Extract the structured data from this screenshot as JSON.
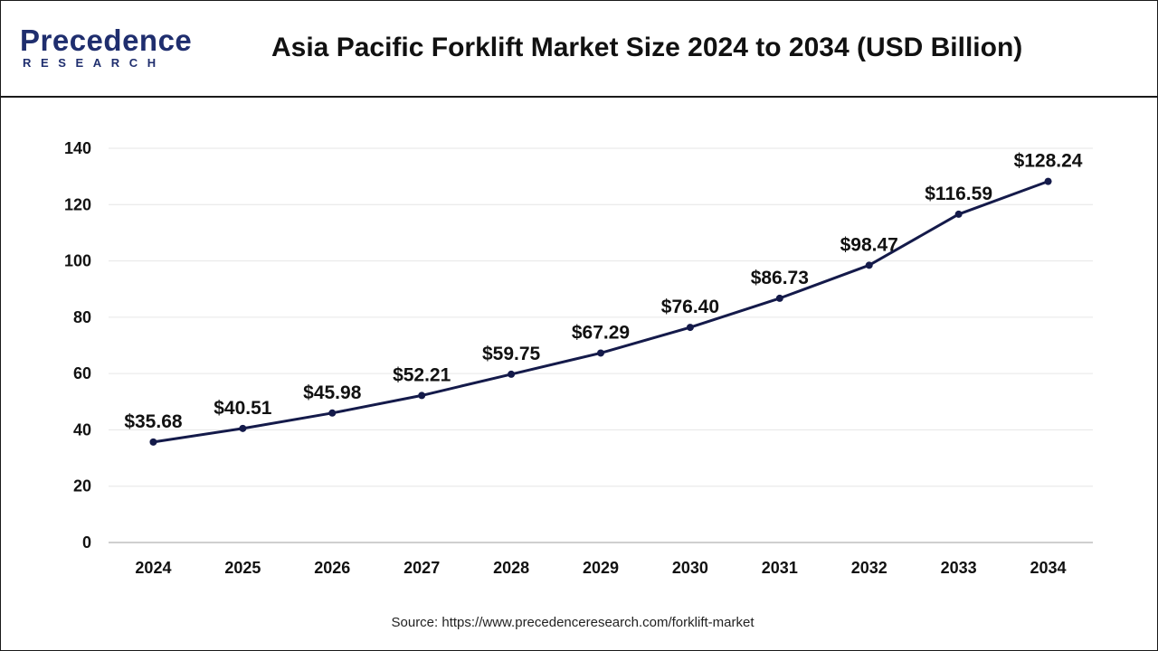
{
  "header": {
    "logo_main": "Precedence",
    "logo_sub": "RESEARCH",
    "title": "Asia Pacific Forklift Market Size 2024 to 2034 (USD Billion)"
  },
  "colors": {
    "line": "#141a4a",
    "brand": "#1f2e6e",
    "grid": "#e6e6e6",
    "axis": "#bfbfbf"
  },
  "chart_data": {
    "type": "line",
    "title": "Asia Pacific Forklift Market Size 2024 to 2034 (USD Billion)",
    "xlabel": "",
    "ylabel": "",
    "categories": [
      "2024",
      "2025",
      "2026",
      "2027",
      "2028",
      "2029",
      "2030",
      "2031",
      "2032",
      "2033",
      "2034"
    ],
    "series": [
      {
        "values": [
          35.68,
          40.51,
          45.98,
          52.21,
          59.75,
          67.29,
          76.4,
          86.73,
          98.47,
          116.59,
          128.24
        ],
        "labels": [
          "$35.68",
          "$40.51",
          "$45.98",
          "$52.21",
          "$59.75",
          "$67.29",
          "$76.40",
          "$86.73",
          "$98.47",
          "$116.59",
          "$128.24"
        ]
      }
    ],
    "ylim": [
      0,
      140
    ],
    "yticks": [
      "0",
      "20",
      "40",
      "60",
      "80",
      "100",
      "120",
      "140"
    ],
    "grid": true,
    "legend": "none"
  },
  "footer": {
    "source": "Source: https://www.precedenceresearch.com/forklift-market"
  }
}
